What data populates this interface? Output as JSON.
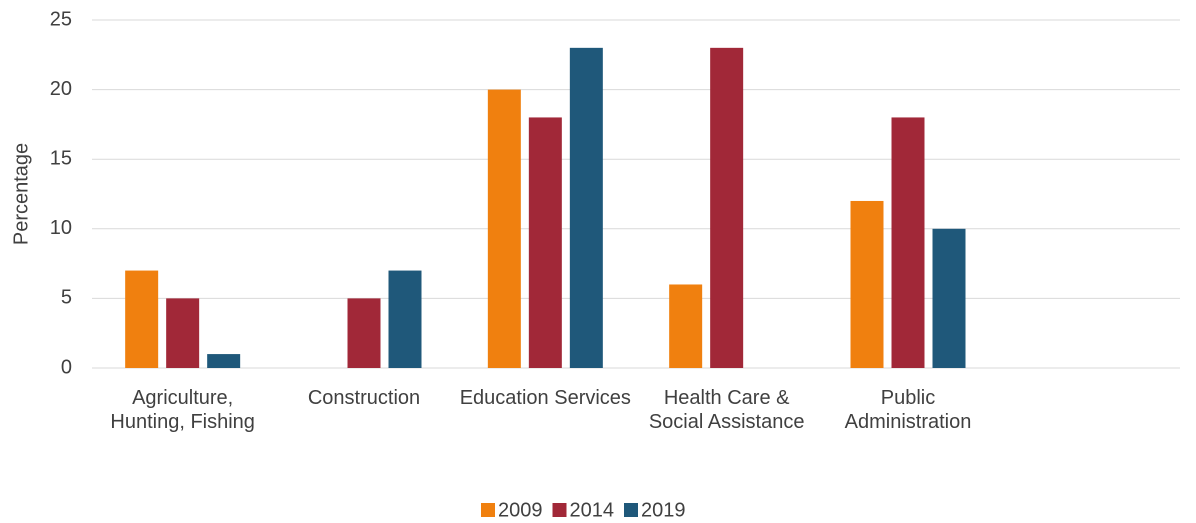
{
  "chart_data": {
    "type": "bar",
    "y_label": "Percentage",
    "categories": [
      "Agriculture, Hunting, Fishing",
      "Construction",
      "Education Services",
      "Health Care & Social Assistance",
      "Public Administration",
      null
    ],
    "series": [
      {
        "name": "2009",
        "color": "#f0800f",
        "values": [
          7,
          0,
          20,
          6,
          12,
          null
        ]
      },
      {
        "name": "2014",
        "color": "#a12838",
        "values": [
          5,
          5,
          18,
          23,
          18,
          null
        ]
      },
      {
        "name": "2019",
        "color": "#1f587a",
        "values": [
          1,
          7,
          23,
          0,
          10,
          null
        ]
      }
    ],
    "ylim": [
      0,
      25
    ],
    "yticks": [
      0,
      5,
      10,
      15,
      20,
      25
    ],
    "grid": true,
    "legend": "bottom"
  }
}
